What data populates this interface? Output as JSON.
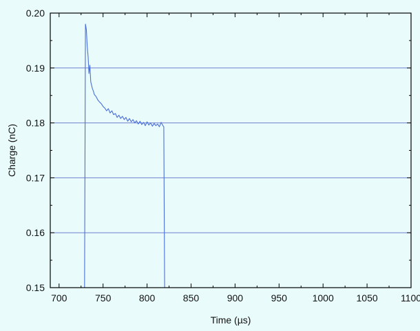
{
  "chart_data": {
    "type": "line",
    "title": "",
    "xlabel": "Time (µs)",
    "ylabel": "Charge (nC)",
    "xlim": [
      690,
      1100
    ],
    "ylim": [
      0.15,
      0.2
    ],
    "x_ticks": [
      {
        "value": 700,
        "label": "700"
      },
      {
        "value": 750,
        "label": "750"
      },
      {
        "value": 800,
        "label": "800"
      },
      {
        "value": 850,
        "label": "850"
      },
      {
        "value": 900,
        "label": "900"
      },
      {
        "value": 950,
        "label": "950"
      },
      {
        "value": 1000,
        "label": "1000"
      },
      {
        "value": 1050,
        "label": "1050"
      },
      {
        "value": 1100,
        "label": "1100"
      }
    ],
    "y_ticks": [
      {
        "value": 0.15,
        "label": "0.15"
      },
      {
        "value": 0.16,
        "label": "0.16"
      },
      {
        "value": 0.17,
        "label": "0.17"
      },
      {
        "value": 0.18,
        "label": "0.18"
      },
      {
        "value": 0.19,
        "label": "0.19"
      },
      {
        "value": 0.2,
        "label": "0.20"
      }
    ],
    "grid": "horizontal",
    "legend": "none",
    "colors": {
      "background": "#e9fbfb",
      "line": "#4a6fd8",
      "grid": "#6f7fcf",
      "axis": "#000000"
    },
    "series": [
      {
        "x": [
          729,
          730,
          731,
          732,
          733,
          734,
          735,
          736,
          737,
          738,
          739,
          740,
          742,
          744,
          746,
          748,
          750,
          752,
          754,
          756,
          758,
          760,
          762,
          764,
          766,
          768,
          770,
          772,
          774,
          776,
          778,
          780,
          782,
          784,
          786,
          788,
          790,
          792,
          794,
          796,
          798,
          800,
          802,
          804,
          806,
          808,
          810,
          812,
          814,
          816,
          818,
          819,
          820
        ],
        "y": [
          0.15,
          0.198,
          0.197,
          0.194,
          0.192,
          0.189,
          0.1905,
          0.1875,
          0.1868,
          0.1862,
          0.1858,
          0.1852,
          0.1848,
          0.1842,
          0.1838,
          0.1835,
          0.183,
          0.1827,
          0.1822,
          0.1826,
          0.1818,
          0.1822,
          0.1815,
          0.1817,
          0.181,
          0.1814,
          0.1808,
          0.1812,
          0.1806,
          0.181,
          0.1803,
          0.1808,
          0.1802,
          0.1806,
          0.18,
          0.1804,
          0.1798,
          0.1803,
          0.1797,
          0.1801,
          0.1795,
          0.1802,
          0.1796,
          0.18,
          0.1794,
          0.1799,
          0.1795,
          0.1798,
          0.1793,
          0.1801,
          0.1795,
          0.1793,
          0.15
        ]
      }
    ]
  }
}
